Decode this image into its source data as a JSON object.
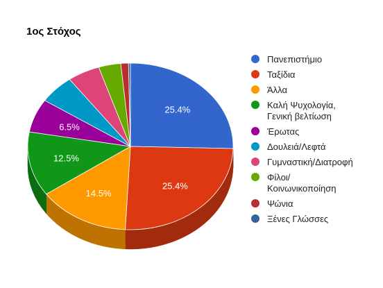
{
  "chart_data": {
    "type": "pie",
    "title": "1ος Στόχος",
    "is_3d": true,
    "legend_position": "right",
    "slices": [
      {
        "label": "Πανεπιστήμιο",
        "legend_lines": [
          "Πανεπιστήμιο"
        ],
        "value": 25.4,
        "pct_label": "25.4%",
        "color": "#3366cc",
        "dark": "#25489a"
      },
      {
        "label": "Ταξίδια",
        "legend_lines": [
          "Ταξίδια"
        ],
        "value": 25.4,
        "pct_label": "25.4%",
        "color": "#dc3912",
        "dark": "#a22a0d"
      },
      {
        "label": "Άλλα",
        "legend_lines": [
          "Άλλα"
        ],
        "value": 14.5,
        "pct_label": "14.5%",
        "color": "#ff9900",
        "dark": "#be7200"
      },
      {
        "label": "Καλή Ψυχολογία, Γενική βελτίωση",
        "legend_lines": [
          "Καλή Ψυχολογία,",
          "Γενική βελτίωση"
        ],
        "value": 12.5,
        "pct_label": "12.5%",
        "color": "#109618",
        "dark": "#0b6c11"
      },
      {
        "label": "Έρωτας",
        "legend_lines": [
          "Έρωτας"
        ],
        "value": 6.5,
        "pct_label": "6.5%",
        "color": "#990099",
        "dark": "#6d006d"
      },
      {
        "label": "Δουλειά/Λεφτά",
        "legend_lines": [
          "Δουλειά/Λεφτά"
        ],
        "value": 5.6,
        "pct_label": "",
        "color": "#0099c6",
        "dark": "#006f90"
      },
      {
        "label": "Γυμναστική/Διατροφή",
        "legend_lines": [
          "Γυμναστική/Διατροφή"
        ],
        "value": 5.1,
        "pct_label": "",
        "color": "#dd4477",
        "dark": "#a33157"
      },
      {
        "label": "Φίλοι/ Κοινωνικοποίηση",
        "legend_lines": [
          "Φίλοι/",
          "Κοινωνικοποίηση"
        ],
        "value": 3.5,
        "pct_label": "",
        "color": "#66aa00",
        "dark": "#4a7c00"
      },
      {
        "label": "Ψώνια",
        "legend_lines": [
          "Ψώνια"
        ],
        "value": 1.2,
        "pct_label": "",
        "color": "#b82e2e",
        "dark": "#862121"
      },
      {
        "label": "Ξένες Γλώσσες",
        "legend_lines": [
          "Ξένες Γλώσσες"
        ],
        "value": 0.3,
        "pct_label": "",
        "color": "#316395",
        "dark": "#23476b"
      }
    ]
  }
}
